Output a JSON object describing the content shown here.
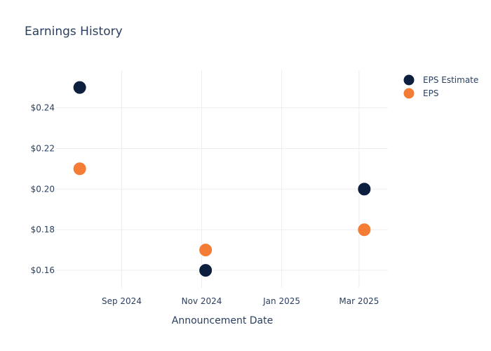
{
  "chart_data": {
    "type": "scatter",
    "title": "Earnings History",
    "xlabel": "Announcement Date",
    "ylabel": "",
    "x_type": "date",
    "xlim": [
      "2024-07-13",
      "2025-03-23"
    ],
    "ylim": [
      0.1514,
      0.2585
    ],
    "x_ticks": [
      {
        "value": "2024-09-01",
        "label": "Sep 2024"
      },
      {
        "value": "2024-11-01",
        "label": "Nov 2024"
      },
      {
        "value": "2025-01-01",
        "label": "Jan 2025"
      },
      {
        "value": "2025-03-01",
        "label": "Mar 2025"
      }
    ],
    "y_ticks": [
      {
        "value": 0.16,
        "label": "$0.16"
      },
      {
        "value": 0.18,
        "label": "$0.18"
      },
      {
        "value": 0.2,
        "label": "$0.20"
      },
      {
        "value": 0.22,
        "label": "$0.22"
      },
      {
        "value": 0.24,
        "label": "$0.24"
      }
    ],
    "grid": true,
    "legend_position": "top-right",
    "series": [
      {
        "name": "EPS Estimate",
        "color": "#0c1f3f",
        "points": [
          {
            "x": "2024-07-31",
            "y": 0.25
          },
          {
            "x": "2024-11-04",
            "y": 0.16
          },
          {
            "x": "2025-03-05",
            "y": 0.2
          }
        ]
      },
      {
        "name": "EPS",
        "color": "#f47c35",
        "points": [
          {
            "x": "2024-07-31",
            "y": 0.21
          },
          {
            "x": "2024-11-04",
            "y": 0.17
          },
          {
            "x": "2025-03-05",
            "y": 0.18
          }
        ]
      }
    ]
  }
}
